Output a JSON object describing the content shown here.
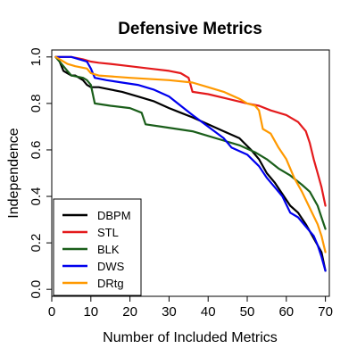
{
  "chart_data": {
    "type": "line",
    "title": "Defensive Metrics",
    "xlabel": "Number of Included Metrics",
    "ylabel": "Independence",
    "xlim": [
      0,
      71
    ],
    "ylim": [
      -0.03,
      1.03
    ],
    "xticks": [
      0,
      10,
      20,
      30,
      40,
      50,
      60,
      70
    ],
    "yticks": [
      0.0,
      0.2,
      0.4,
      0.6,
      0.8,
      1.0
    ],
    "xtick_labels": [
      "0",
      "10",
      "20",
      "30",
      "40",
      "50",
      "60",
      "70"
    ],
    "ytick_labels": [
      "0.0",
      "0.2",
      "0.4",
      "0.6",
      "0.8",
      "1.0"
    ],
    "grid": false,
    "legend_position": "bottom-left",
    "series": [
      {
        "name": "DBPM",
        "color": "#000000",
        "points": [
          [
            1,
            1.0
          ],
          [
            2,
            0.98
          ],
          [
            3,
            0.94
          ],
          [
            4,
            0.93
          ],
          [
            5,
            0.92
          ],
          [
            6,
            0.92
          ],
          [
            7,
            0.91
          ],
          [
            8,
            0.9
          ],
          [
            9,
            0.88
          ],
          [
            10,
            0.87
          ],
          [
            12,
            0.87
          ],
          [
            15,
            0.86
          ],
          [
            18,
            0.85
          ],
          [
            22,
            0.83
          ],
          [
            26,
            0.81
          ],
          [
            30,
            0.78
          ],
          [
            33,
            0.76
          ],
          [
            36,
            0.74
          ],
          [
            40,
            0.71
          ],
          [
            44,
            0.68
          ],
          [
            48,
            0.65
          ],
          [
            51,
            0.6
          ],
          [
            53,
            0.56
          ],
          [
            55,
            0.5
          ],
          [
            57,
            0.46
          ],
          [
            59,
            0.41
          ],
          [
            61,
            0.36
          ],
          [
            63,
            0.33
          ],
          [
            65,
            0.28
          ],
          [
            67,
            0.22
          ],
          [
            69,
            0.16
          ],
          [
            70,
            0.08
          ]
        ]
      },
      {
        "name": "STL",
        "color": "#e41a1c",
        "points": [
          [
            1,
            1.0
          ],
          [
            5,
            1.0
          ],
          [
            8,
            0.99
          ],
          [
            10,
            0.98
          ],
          [
            12,
            0.975
          ],
          [
            15,
            0.97
          ],
          [
            20,
            0.96
          ],
          [
            25,
            0.95
          ],
          [
            30,
            0.94
          ],
          [
            33,
            0.93
          ],
          [
            35,
            0.91
          ],
          [
            36,
            0.85
          ],
          [
            40,
            0.84
          ],
          [
            45,
            0.82
          ],
          [
            50,
            0.8
          ],
          [
            53,
            0.79
          ],
          [
            56,
            0.77
          ],
          [
            60,
            0.75
          ],
          [
            63,
            0.72
          ],
          [
            65,
            0.68
          ],
          [
            66,
            0.63
          ],
          [
            67,
            0.56
          ],
          [
            68,
            0.5
          ],
          [
            69,
            0.44
          ],
          [
            70,
            0.36
          ]
        ]
      },
      {
        "name": "BLK",
        "color": "#1a5e1a",
        "points": [
          [
            1,
            1.0
          ],
          [
            3,
            0.96
          ],
          [
            4,
            0.94
          ],
          [
            5,
            0.92
          ],
          [
            8,
            0.91
          ],
          [
            9,
            0.9
          ],
          [
            10,
            0.88
          ],
          [
            11,
            0.8
          ],
          [
            15,
            0.79
          ],
          [
            20,
            0.78
          ],
          [
            23,
            0.76
          ],
          [
            24,
            0.71
          ],
          [
            28,
            0.7
          ],
          [
            32,
            0.69
          ],
          [
            36,
            0.68
          ],
          [
            40,
            0.66
          ],
          [
            44,
            0.64
          ],
          [
            48,
            0.62
          ],
          [
            52,
            0.59
          ],
          [
            55,
            0.56
          ],
          [
            58,
            0.52
          ],
          [
            61,
            0.49
          ],
          [
            64,
            0.45
          ],
          [
            66,
            0.42
          ],
          [
            68,
            0.36
          ],
          [
            69,
            0.31
          ],
          [
            70,
            0.26
          ]
        ]
      },
      {
        "name": "DWS",
        "color": "#0000ee",
        "points": [
          [
            1,
            1.0
          ],
          [
            5,
            1.0
          ],
          [
            9,
            0.98
          ],
          [
            10,
            0.95
          ],
          [
            11,
            0.91
          ],
          [
            14,
            0.9
          ],
          [
            18,
            0.89
          ],
          [
            22,
            0.88
          ],
          [
            26,
            0.86
          ],
          [
            30,
            0.83
          ],
          [
            33,
            0.79
          ],
          [
            36,
            0.75
          ],
          [
            40,
            0.7
          ],
          [
            44,
            0.65
          ],
          [
            46,
            0.61
          ],
          [
            50,
            0.58
          ],
          [
            53,
            0.53
          ],
          [
            55,
            0.48
          ],
          [
            57,
            0.44
          ],
          [
            59,
            0.4
          ],
          [
            61,
            0.33
          ],
          [
            63,
            0.31
          ],
          [
            65,
            0.27
          ],
          [
            67,
            0.23
          ],
          [
            68,
            0.19
          ],
          [
            69,
            0.14
          ],
          [
            70,
            0.08
          ]
        ]
      },
      {
        "name": "DRtg",
        "color": "#ff9900",
        "points": [
          [
            1,
            1.0
          ],
          [
            4,
            0.97
          ],
          [
            6,
            0.96
          ],
          [
            9,
            0.95
          ],
          [
            10,
            0.93
          ],
          [
            12,
            0.92
          ],
          [
            20,
            0.91
          ],
          [
            30,
            0.9
          ],
          [
            36,
            0.89
          ],
          [
            40,
            0.87
          ],
          [
            44,
            0.85
          ],
          [
            48,
            0.82
          ],
          [
            50,
            0.8
          ],
          [
            52,
            0.79
          ],
          [
            53,
            0.77
          ],
          [
            54,
            0.69
          ],
          [
            56,
            0.67
          ],
          [
            58,
            0.61
          ],
          [
            60,
            0.56
          ],
          [
            62,
            0.48
          ],
          [
            64,
            0.42
          ],
          [
            66,
            0.35
          ],
          [
            68,
            0.28
          ],
          [
            69,
            0.23
          ],
          [
            70,
            0.16
          ]
        ]
      }
    ]
  }
}
